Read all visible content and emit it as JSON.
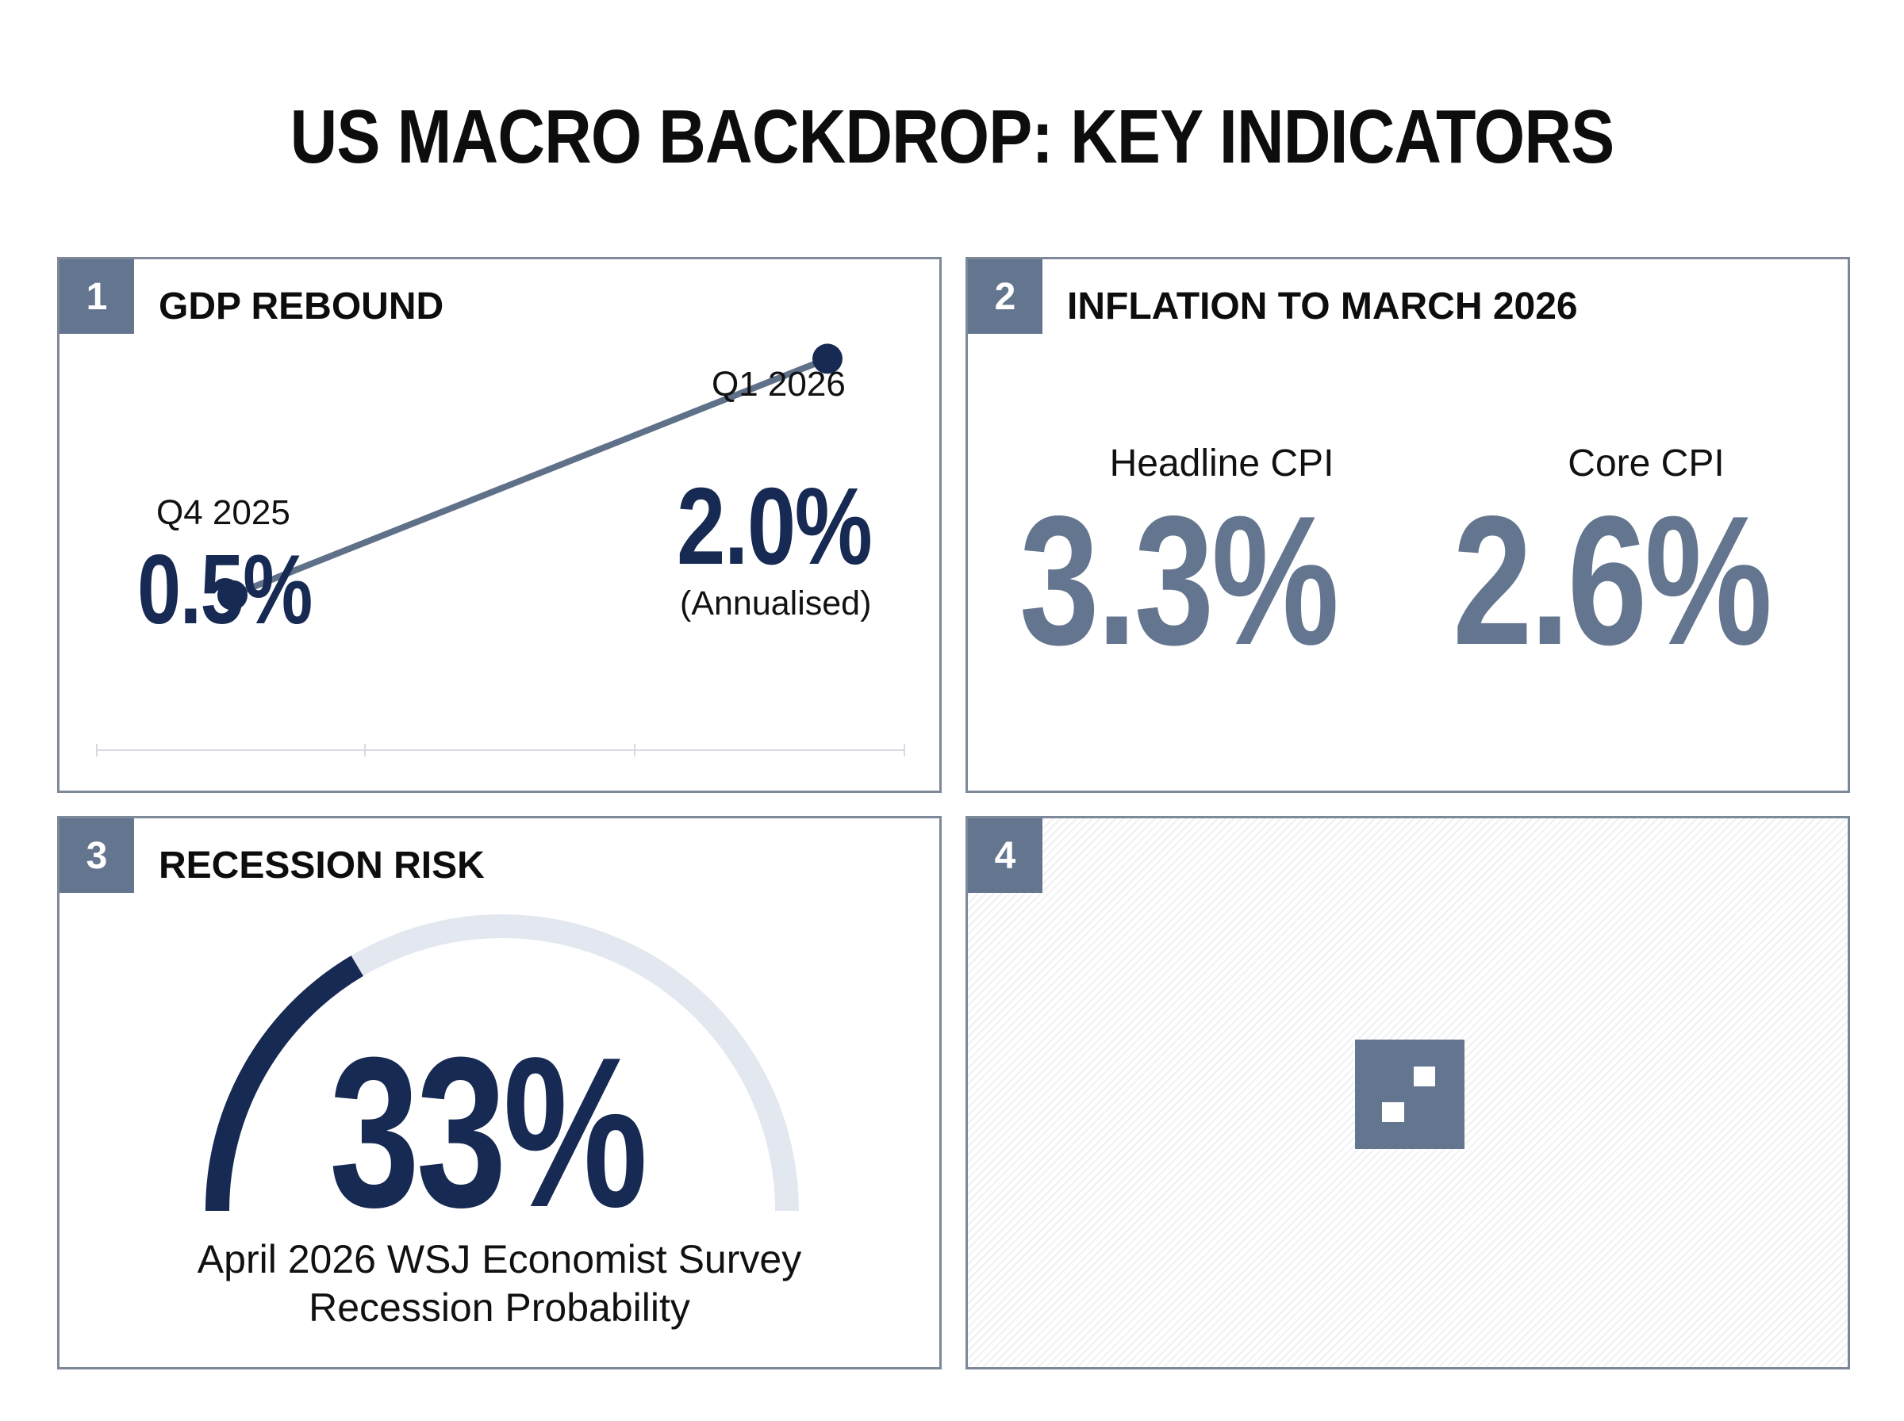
{
  "title": "US MACRO BACKDROP: KEY INDICATORS",
  "colors": {
    "navy": "#172a53",
    "slate": "#64768f",
    "track": "#e3e8f0",
    "border": "#7d8899"
  },
  "panels": [
    {
      "number": "1",
      "title": "GDP REBOUND"
    },
    {
      "number": "2",
      "title": "INFLATION TO MARCH 2026"
    },
    {
      "number": "3",
      "title": "RECESSION RISK"
    },
    {
      "number": "4",
      "title": ""
    }
  ],
  "chart_data": [
    {
      "type": "line",
      "title": "GDP REBOUND",
      "categories": [
        "Q4 2025",
        "Q1 2026"
      ],
      "values": [
        0.5,
        2.0
      ],
      "value_labels": [
        "0.5%",
        "2.0%"
      ],
      "note": "(Annualised)",
      "unit": "%",
      "grid": false
    },
    {
      "type": "table",
      "title": "INFLATION TO MARCH 2026",
      "items": [
        {
          "label": "Headline CPI",
          "value": 3.3,
          "display": "3.3%"
        },
        {
          "label": "Core CPI",
          "value": 2.6,
          "display": "2.6%"
        }
      ]
    },
    {
      "type": "gauge",
      "title": "RECESSION RISK",
      "value": 33,
      "max": 100,
      "display": "33%",
      "caption_line1": "April 2026 WSJ Economist Survey",
      "caption_line2": "Recession Probability"
    }
  ],
  "placeholder_icon": "qr-code-icon"
}
